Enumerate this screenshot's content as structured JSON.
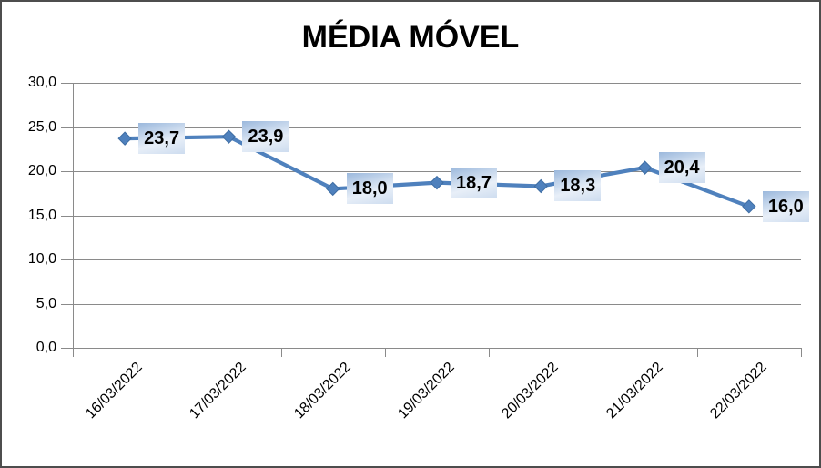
{
  "window": {
    "background": "#ffffff"
  },
  "chart_data": {
    "type": "line",
    "title": "MÉDIA MÓVEL",
    "categories": [
      "16/03/2022",
      "17/03/2022",
      "18/03/2022",
      "19/03/2022",
      "20/03/2022",
      "21/03/2022",
      "22/03/2022"
    ],
    "values": [
      23.7,
      23.9,
      18.0,
      18.7,
      18.3,
      20.4,
      16.0
    ],
    "data_labels": [
      "23,7",
      "23,9",
      "18,0",
      "18,7",
      "18,3",
      "20,4",
      "16,0"
    ],
    "ylim": [
      0,
      30
    ],
    "yticks": [
      0,
      5,
      10,
      15,
      20,
      25,
      30
    ],
    "ytick_labels": [
      "0,0",
      "5,0",
      "10,0",
      "15,0",
      "20,0",
      "25,0",
      "30,0"
    ],
    "xlabel": "",
    "ylabel": "",
    "grid": true,
    "legend": "none",
    "marker": "diamond",
    "decimal_separator": ","
  },
  "colors": {
    "line": "#4f81bd",
    "marker_fill": "#4f81bd",
    "marker_stroke": "#3e6da3",
    "gridline": "#8a8a8a",
    "axis": "#8a8a8a",
    "text": "#000000",
    "frame_border": "#4d4d4d",
    "label_box_gradient_top": "#9bb8dc",
    "label_box_gradient_mid": "#e8eff8",
    "label_box_gradient_bottom": "#cddcef"
  }
}
